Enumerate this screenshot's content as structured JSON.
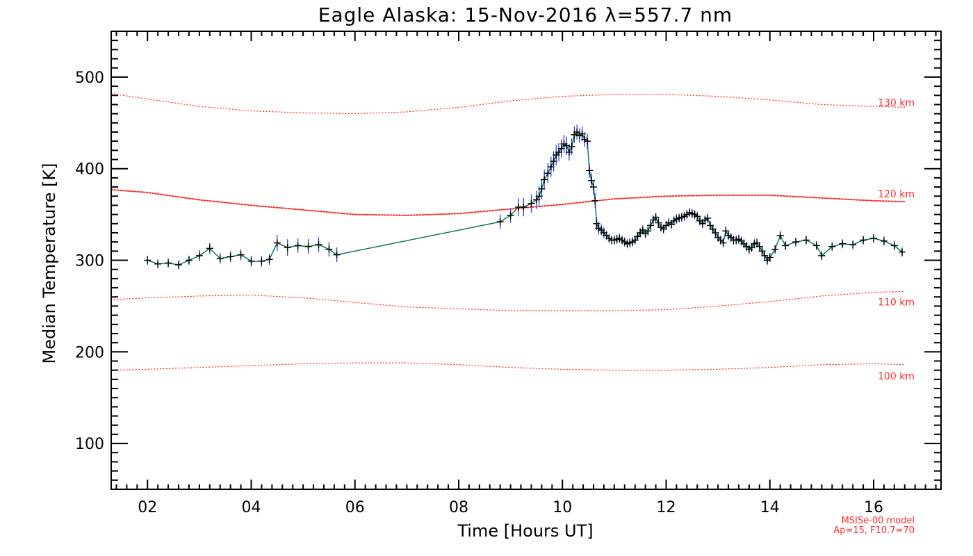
{
  "chart_data": {
    "type": "line",
    "title": "Eagle Alaska: 15-Nov-2016 λ=557.7 nm",
    "xlabel": "Time [Hours UT]",
    "ylabel": "Median Temperature [K]",
    "xlim": [
      1.3,
      17.3
    ],
    "ylim": [
      50,
      550
    ],
    "x_ticks": [
      2,
      4,
      6,
      8,
      10,
      12,
      14,
      16
    ],
    "x_tick_labels": [
      "02",
      "04",
      "06",
      "08",
      "10",
      "12",
      "14",
      "16"
    ],
    "y_ticks": [
      100,
      200,
      300,
      400,
      500
    ],
    "y_tick_labels": [
      "100",
      "200",
      "300",
      "400",
      "500"
    ],
    "grid": false,
    "colors": {
      "data_line": "#0b7a56",
      "error_bar": "#2233dd",
      "marker": "#000000",
      "model": "#ff2a2a"
    },
    "series": [
      {
        "x": [
          2.0,
          2.2,
          2.4,
          2.6,
          2.8,
          3.0,
          3.2,
          3.4,
          3.6,
          3.8,
          4.0,
          4.2,
          4.35,
          4.5,
          4.7,
          4.9,
          5.1,
          5.3,
          5.5,
          5.65,
          8.8,
          9.0,
          9.15,
          9.25,
          9.4,
          9.5,
          9.55,
          9.6,
          9.65,
          9.72,
          9.78,
          9.83,
          9.88,
          9.93,
          9.98,
          10.03,
          10.08,
          10.13,
          10.18,
          10.23,
          10.28,
          10.33,
          10.38,
          10.43,
          10.48,
          10.52,
          10.56,
          10.6,
          10.63,
          10.66,
          10.7,
          10.75,
          10.8,
          10.85,
          10.9,
          10.95,
          11.0,
          11.05,
          11.1,
          11.15,
          11.2,
          11.25,
          11.3,
          11.35,
          11.4,
          11.45,
          11.5,
          11.55,
          11.6,
          11.65,
          11.7,
          11.75,
          11.8,
          11.85,
          11.9,
          11.95,
          12.0,
          12.05,
          12.1,
          12.15,
          12.2,
          12.25,
          12.3,
          12.35,
          12.4,
          12.45,
          12.5,
          12.55,
          12.6,
          12.65,
          12.7,
          12.75,
          12.8,
          12.85,
          12.9,
          12.95,
          13.0,
          13.05,
          13.1,
          13.15,
          13.2,
          13.25,
          13.3,
          13.35,
          13.4,
          13.45,
          13.5,
          13.55,
          13.6,
          13.65,
          13.7,
          13.75,
          13.8,
          13.85,
          13.9,
          13.95,
          14.0,
          14.1,
          14.2,
          14.3,
          14.5,
          14.7,
          14.9,
          15.0,
          15.2,
          15.4,
          15.6,
          15.8,
          16.0,
          16.2,
          16.4,
          16.55
        ],
        "y": [
          300,
          296,
          297,
          295,
          300,
          305,
          313,
          302,
          304,
          306,
          299,
          299,
          301,
          319,
          314,
          316,
          315,
          317,
          312,
          306,
          342,
          349,
          358,
          358,
          362,
          366,
          370,
          378,
          388,
          395,
          402,
          408,
          415,
          418,
          422,
          427,
          425,
          418,
          424,
          437,
          440,
          436,
          438,
          432,
          430,
          398,
          387,
          380,
          365,
          340,
          335,
          333,
          330,
          327,
          324,
          322,
          322,
          323,
          324,
          322,
          320,
          318,
          319,
          320,
          322,
          326,
          330,
          333,
          329,
          332,
          338,
          344,
          347,
          341,
          336,
          334,
          338,
          341,
          339,
          343,
          345,
          346,
          347,
          348,
          350,
          352,
          351,
          350,
          348,
          343,
          340,
          344,
          346,
          338,
          334,
          330,
          325,
          322,
          319,
          332,
          327,
          325,
          322,
          322,
          323,
          321,
          318,
          315,
          312,
          314,
          318,
          319,
          315,
          310,
          305,
          300,
          303,
          312,
          327,
          316,
          320,
          322,
          316,
          305,
          315,
          318,
          317,
          322,
          324,
          321,
          316,
          309
        ],
        "errors": [
          5,
          5,
          5,
          5,
          5,
          6,
          6,
          6,
          6,
          6,
          6,
          6,
          6,
          9,
          9,
          8,
          8,
          8,
          8,
          8,
          8,
          8,
          10,
          10,
          10,
          10,
          11,
          11,
          11,
          11,
          11,
          11,
          11,
          10,
          10,
          10,
          10,
          9,
          9,
          9,
          8,
          8,
          8,
          8,
          8,
          8,
          8,
          8,
          8,
          7,
          7,
          6,
          6,
          5,
          5,
          5,
          5,
          5,
          5,
          5,
          5,
          5,
          5,
          5,
          5,
          5,
          5,
          5,
          5,
          5,
          5,
          5,
          5,
          5,
          5,
          5,
          5,
          5,
          5,
          5,
          5,
          5,
          5,
          5,
          5,
          5,
          5,
          5,
          5,
          5,
          5,
          5,
          5,
          5,
          5,
          5,
          5,
          5,
          5,
          5,
          5,
          5,
          5,
          5,
          5,
          5,
          5,
          5,
          5,
          5,
          5,
          5,
          5,
          5,
          5,
          5,
          5,
          5,
          5,
          5,
          5,
          5,
          5,
          5,
          5,
          5,
          5,
          5,
          5,
          5,
          5,
          5
        ]
      }
    ],
    "model_curves": [
      {
        "label": "130 km",
        "x": [
          1.3,
          2,
          3,
          4,
          5,
          6,
          7,
          8,
          9,
          10,
          11,
          12,
          13,
          14,
          15,
          16,
          16.6
        ],
        "y": [
          482,
          476,
          468,
          463,
          461,
          460,
          462,
          467,
          474,
          479,
          481,
          481,
          479,
          475,
          470,
          468,
          467
        ]
      },
      {
        "label": "120 km",
        "x": [
          1.3,
          2,
          3,
          4,
          5,
          6,
          7,
          8,
          9,
          10,
          11,
          12,
          13,
          14,
          15,
          16,
          16.6
        ],
        "y": [
          377,
          374,
          366,
          360,
          355,
          350,
          349,
          351,
          356,
          361,
          367,
          370,
          371,
          371,
          368,
          365,
          364
        ]
      },
      {
        "label": "110 km",
        "x": [
          1.3,
          2,
          3,
          4,
          5,
          6,
          7,
          8,
          9,
          10,
          11,
          12,
          13,
          14,
          15,
          16,
          16.6
        ],
        "y": [
          257,
          259,
          261,
          262,
          259,
          254,
          249,
          247,
          245,
          245,
          245,
          246,
          250,
          255,
          261,
          265,
          266
        ]
      },
      {
        "label": "100 km",
        "x": [
          1.3,
          2,
          3,
          4,
          5,
          6,
          7,
          8,
          9,
          10,
          11,
          12,
          13,
          14,
          15,
          16,
          16.6
        ],
        "y": [
          180,
          181,
          183,
          185,
          187,
          188,
          188,
          186,
          183,
          181,
          180,
          180,
          181,
          183,
          186,
          187,
          186
        ]
      }
    ],
    "annotations": [
      "MSISe-00 model",
      "Ap=15, F10.7=70"
    ]
  }
}
